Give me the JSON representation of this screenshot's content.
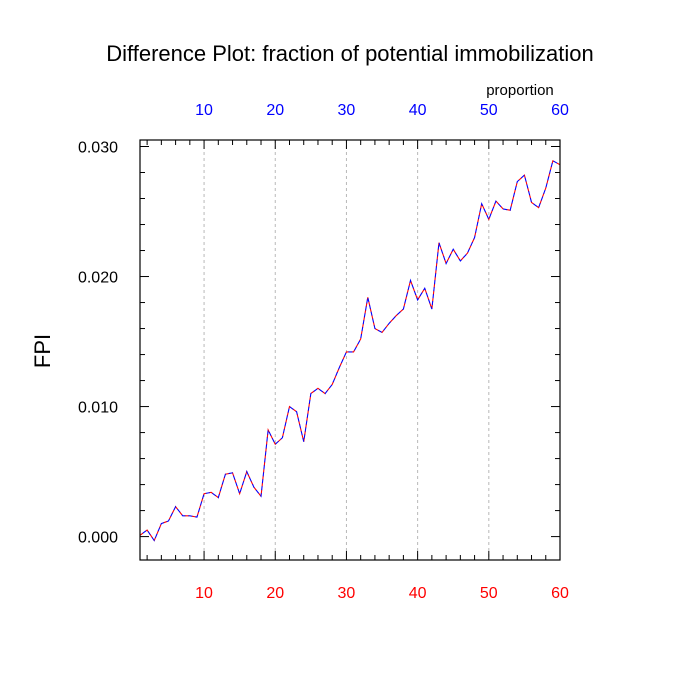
{
  "chart_data": {
    "type": "line",
    "title": "Difference Plot: fraction of potential immobilization",
    "ylabel": "FPI",
    "top_axis_label": "proportion",
    "xlim": [
      1,
      60
    ],
    "ylim": [
      -0.0018,
      0.0305
    ],
    "x_ticks": [
      10,
      20,
      30,
      40,
      50,
      60
    ],
    "y_ticks": [
      0.0,
      0.01,
      0.02,
      0.03
    ],
    "y_tick_labels": [
      "0.000",
      "0.010",
      "0.020",
      "0.030"
    ],
    "x_grid": true,
    "colors": {
      "bottom_tick_labels": "#ff0000",
      "top_tick_labels": "#0000ff",
      "series_lines": [
        "#ff0000",
        "#0000ff"
      ]
    },
    "series": [
      {
        "style": "dashed",
        "color": "#ff0000",
        "x": [
          1,
          2,
          3,
          4,
          5,
          6,
          7,
          8,
          9,
          10,
          11,
          12,
          13,
          14,
          15,
          16,
          17,
          18,
          19,
          20,
          21,
          22,
          23,
          24,
          25,
          26,
          27,
          28,
          29,
          30,
          31,
          32,
          33,
          34,
          35,
          36,
          37,
          38,
          39,
          40,
          41,
          42,
          43,
          44,
          45,
          46,
          47,
          48,
          49,
          50,
          51,
          52,
          53,
          54,
          55,
          56,
          57,
          58,
          59,
          60
        ],
        "values": [
          0.0001,
          0.0005,
          -0.0003,
          0.001,
          0.0012,
          0.0023,
          0.0016,
          0.0016,
          0.0015,
          0.0033,
          0.0034,
          0.003,
          0.0048,
          0.0049,
          0.0033,
          0.005,
          0.0038,
          0.0031,
          0.0082,
          0.0071,
          0.0076,
          0.01,
          0.0096,
          0.0073,
          0.011,
          0.0114,
          0.011,
          0.0117,
          0.013,
          0.0142,
          0.0142,
          0.0152,
          0.0184,
          0.016,
          0.0157,
          0.0164,
          0.017,
          0.0175,
          0.0197,
          0.0182,
          0.0191,
          0.0175,
          0.0226,
          0.021,
          0.0221,
          0.0212,
          0.0218,
          0.023,
          0.0256,
          0.0244,
          0.0258,
          0.0252,
          0.0251,
          0.0273,
          0.0278,
          0.0257,
          0.0253,
          0.0268,
          0.0289,
          0.0286
        ]
      },
      {
        "style": "dashed",
        "color": "#0000ff",
        "x": [
          1,
          2,
          3,
          4,
          5,
          6,
          7,
          8,
          9,
          10,
          11,
          12,
          13,
          14,
          15,
          16,
          17,
          18,
          19,
          20,
          21,
          22,
          23,
          24,
          25,
          26,
          27,
          28,
          29,
          30,
          31,
          32,
          33,
          34,
          35,
          36,
          37,
          38,
          39,
          40,
          41,
          42,
          43,
          44,
          45,
          46,
          47,
          48,
          49,
          50,
          51,
          52,
          53,
          54,
          55,
          56,
          57,
          58,
          59,
          60
        ],
        "values": [
          0.0001,
          0.0005,
          -0.0003,
          0.001,
          0.0012,
          0.0023,
          0.0016,
          0.0016,
          0.0015,
          0.0033,
          0.0034,
          0.003,
          0.0048,
          0.0049,
          0.0033,
          0.005,
          0.0038,
          0.0031,
          0.0082,
          0.0071,
          0.0076,
          0.01,
          0.0096,
          0.0073,
          0.011,
          0.0114,
          0.011,
          0.0117,
          0.013,
          0.0142,
          0.0142,
          0.0152,
          0.0184,
          0.016,
          0.0157,
          0.0164,
          0.017,
          0.0175,
          0.0197,
          0.0182,
          0.0191,
          0.0175,
          0.0226,
          0.021,
          0.0221,
          0.0212,
          0.0218,
          0.023,
          0.0256,
          0.0244,
          0.0258,
          0.0252,
          0.0251,
          0.0273,
          0.0278,
          0.0257,
          0.0253,
          0.0268,
          0.0289,
          0.0286
        ]
      }
    ]
  }
}
